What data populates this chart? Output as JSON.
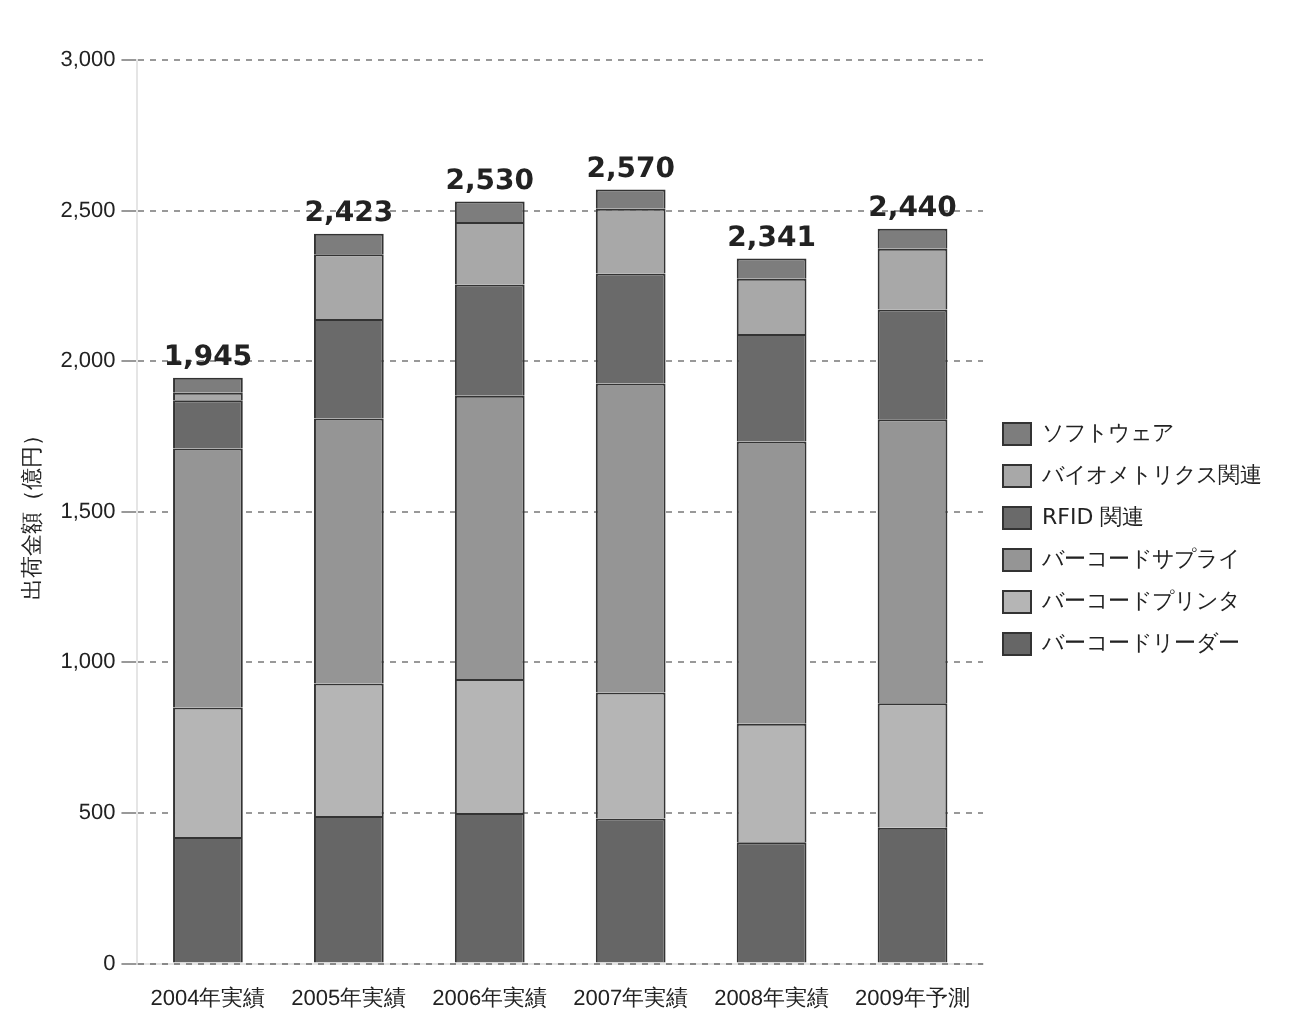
{
  "chart_data": {
    "type": "bar",
    "stacked": true,
    "ylabel": "出荷金額（億円）",
    "categories": [
      "2004年実績",
      "2005年実績",
      "2006年実績",
      "2007年実績",
      "2008年実績",
      "2009年予測"
    ],
    "series": [
      {
        "name": "バーコードリーダー",
        "color": "#666666",
        "values": [
          420,
          490,
          500,
          482,
          403,
          451
        ]
      },
      {
        "name": "バーコードプリンタ",
        "color": "#b5b5b5",
        "values": [
          430,
          440,
          445,
          418,
          393,
          413
        ]
      },
      {
        "name": "バーコードサプライ",
        "color": "#959595",
        "values": [
          860,
          880,
          940,
          1026,
          937,
          943
        ]
      },
      {
        "name": "RFID 関連",
        "color": "#6a6a6a",
        "values": [
          160,
          330,
          370,
          365,
          357,
          365
        ]
      },
      {
        "name": "バイオメトリクス関連",
        "color": "#a8a8a8",
        "values": [
          25,
          215,
          207,
          215,
          184,
          201
        ]
      },
      {
        "name": "ソフトウェア",
        "color": "#7d7d7d",
        "values": [
          50,
          68,
          68,
          64,
          67,
          67
        ]
      }
    ],
    "totals": [
      "1,945",
      "2,423",
      "2,530",
      "2,570",
      "2,341",
      "2,440"
    ],
    "ylim": [
      0,
      3000
    ],
    "yticks": [
      {
        "value": 0,
        "label": "0"
      },
      {
        "value": 500,
        "label": "500"
      },
      {
        "value": 1000,
        "label": "1,000"
      },
      {
        "value": 1500,
        "label": "1,500"
      },
      {
        "value": 2000,
        "label": "2,000"
      },
      {
        "value": 2500,
        "label": "2,500"
      },
      {
        "value": 3000,
        "label": "3,000"
      }
    ],
    "grid": "y",
    "legend": "right"
  }
}
